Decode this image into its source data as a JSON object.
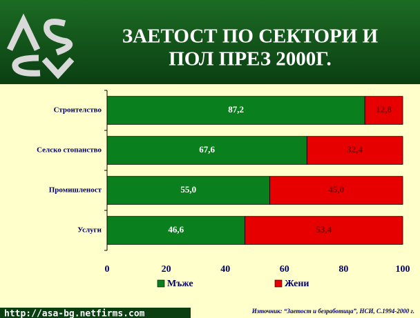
{
  "chart_data": {
    "type": "stacked-bar-horizontal",
    "title": [
      "ЗАЕТОСТ ПО СЕКТОРИ И",
      "ПОЛ ПРЕЗ 2000Г."
    ],
    "categories": [
      "Строителство",
      "Селско стопанство",
      "Промишленост",
      "Услуги"
    ],
    "series": [
      {
        "name": "Мъже",
        "color": "#0a7f1e",
        "values": [
          87.2,
          67.6,
          55.0,
          46.6
        ],
        "value_labels": [
          "87,2",
          "67,6",
          "55,0",
          "46,6"
        ]
      },
      {
        "name": "Жени",
        "color": "#e60000",
        "values": [
          12.8,
          32.4,
          45.0,
          53.4
        ],
        "value_labels": [
          "12,8",
          "32,4",
          "45,0",
          "53,4"
        ]
      }
    ],
    "xlim": [
      0,
      100
    ],
    "xticks": [
      0,
      20,
      40,
      60,
      80,
      100
    ],
    "url": "http://asa-bg.netfirms.com",
    "source": "Източник: “Заетост и безработица”, НСИ, С.1994-2000 г."
  }
}
